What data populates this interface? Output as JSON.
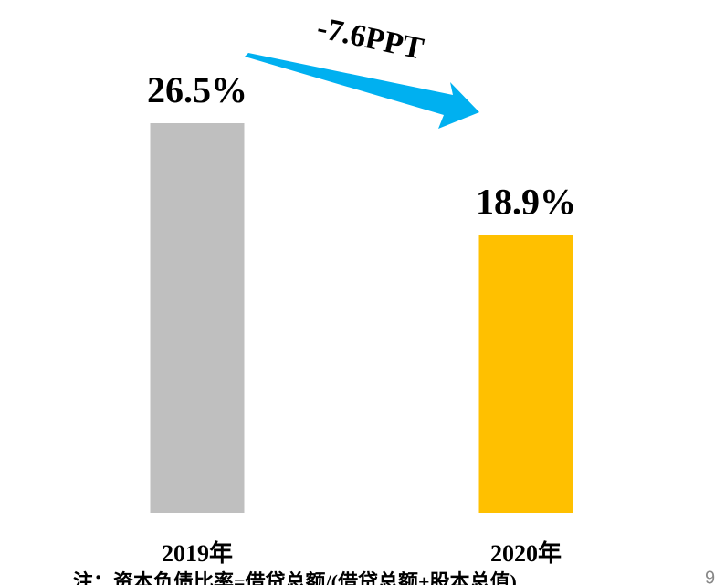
{
  "chart_data": {
    "type": "bar",
    "categories": [
      "2019年",
      "2020年"
    ],
    "values": [
      26.5,
      18.9
    ],
    "value_labels": [
      "26.5%",
      "18.9%"
    ],
    "colors": [
      "#bfbfbf",
      "#ffc000"
    ],
    "annotation": "-7.6PPT",
    "annotation_color": "#00b0f0",
    "note": "注：资本负债比率=借贷总额/(借贷总额+股本总值)",
    "page_number": "9"
  }
}
